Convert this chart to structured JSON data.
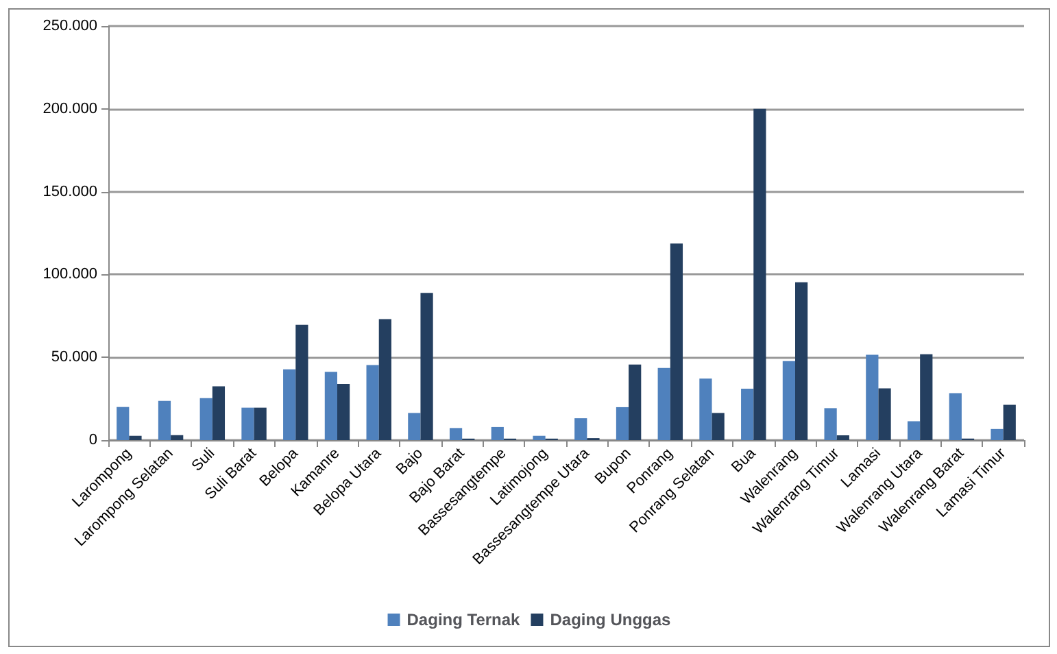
{
  "chart_data": {
    "type": "bar",
    "categories": [
      "Larompong",
      "Larompong Selatan",
      "Suli",
      "Suli Barat",
      "Belopa",
      "Kamanre",
      "Belopa Utara",
      "Bajo",
      "Bajo Barat",
      "Bassesangtempe",
      "Latimojong",
      "Bassesangtempe Utara",
      "Bupon",
      "Ponrang",
      "Ponrang Selatan",
      "Bua",
      "Walenrang",
      "Walenrang Timur",
      "Lamasi",
      "Walenrang Utara",
      "Walenrang Barat",
      "Lamasi Timur"
    ],
    "series": [
      {
        "name": "Daging Ternak",
        "color": "#4f81bd",
        "values": [
          20000,
          23700,
          25400,
          19600,
          42700,
          41200,
          45300,
          16400,
          7300,
          7900,
          2600,
          13200,
          19900,
          43600,
          37100,
          31000,
          47700,
          19300,
          51500,
          11400,
          28400,
          6700
        ]
      },
      {
        "name": "Daging Unggas",
        "color": "#243f60",
        "values": [
          2600,
          3000,
          32500,
          19600,
          69600,
          33900,
          73100,
          88900,
          900,
          900,
          900,
          1200,
          45600,
          118700,
          16400,
          200000,
          95300,
          2900,
          31300,
          51800,
          900,
          21300
        ]
      }
    ],
    "ylim": [
      0,
      250000
    ],
    "yticks": [
      {
        "value": 0,
        "label": "0"
      },
      {
        "value": 50000,
        "label": "50.000"
      },
      {
        "value": 100000,
        "label": "100.000"
      },
      {
        "value": 150000,
        "label": "150.000"
      },
      {
        "value": 200000,
        "label": "200.000"
      },
      {
        "value": 250000,
        "label": "250.000"
      }
    ],
    "grid": "y",
    "legend": "bottom"
  }
}
